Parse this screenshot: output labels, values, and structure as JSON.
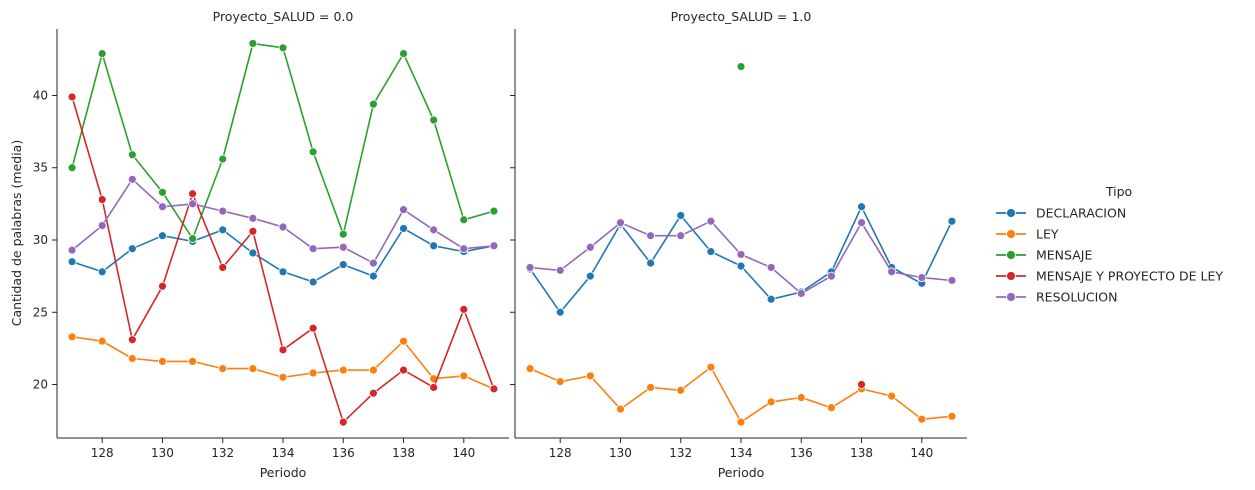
{
  "chart_data": {
    "type": "line",
    "ylabel": "Cantidad de palabras (media)",
    "xlabel": "Periodo",
    "xlim": [
      126.5,
      141.5
    ],
    "ylim": [
      16.3,
      44.6
    ],
    "xticks": [
      128,
      130,
      132,
      134,
      136,
      138,
      140
    ],
    "yticks": [
      20,
      25,
      30,
      35,
      40
    ],
    "legend": {
      "title": "Tipo",
      "placement": "right",
      "entries": [
        "DECLARACION",
        "LEY",
        "MENSAJE",
        "MENSAJE Y PROYECTO DE LEY",
        "RESOLUCION"
      ]
    },
    "colors": {
      "DECLARACION": "#1f77b4",
      "LEY": "#ff7f0e",
      "MENSAJE": "#2ca02c",
      "MENSAJE Y PROYECTO DE LEY": "#d62728",
      "RESOLUCION": "#9467bd"
    },
    "panels": [
      {
        "title": "Proyecto_SALUD = 0.0",
        "series": [
          {
            "name": "DECLARACION",
            "x": [
              127,
              128,
              129,
              130,
              131,
              132,
              133,
              134,
              135,
              136,
              137,
              138,
              139,
              140,
              141
            ],
            "values": [
              28.5,
              27.8,
              29.4,
              30.3,
              29.9,
              30.7,
              29.1,
              27.8,
              27.1,
              28.3,
              27.5,
              30.8,
              29.6,
              29.2,
              29.6
            ]
          },
          {
            "name": "LEY",
            "x": [
              127,
              128,
              129,
              130,
              131,
              132,
              133,
              134,
              135,
              136,
              137,
              138,
              139,
              140,
              141
            ],
            "values": [
              23.3,
              23.0,
              21.8,
              21.6,
              21.6,
              21.1,
              21.1,
              20.5,
              20.8,
              21.0,
              21.0,
              23.0,
              20.4,
              20.6,
              19.7
            ]
          },
          {
            "name": "MENSAJE",
            "x": [
              127,
              128,
              129,
              130,
              131,
              132,
              133,
              134,
              135,
              136,
              137,
              138,
              139,
              140,
              141
            ],
            "values": [
              35.0,
              42.9,
              35.9,
              33.3,
              30.1,
              35.6,
              43.6,
              43.3,
              36.1,
              30.4,
              39.4,
              42.9,
              38.3,
              31.4,
              32.0
            ]
          },
          {
            "name": "MENSAJE Y PROYECTO DE LEY",
            "x": [
              127,
              128,
              129,
              130,
              131,
              132,
              133,
              134,
              135,
              136,
              137,
              138,
              139,
              140,
              141
            ],
            "values": [
              39.9,
              32.8,
              23.1,
              26.8,
              33.2,
              28.1,
              30.6,
              22.4,
              23.9,
              17.4,
              19.4,
              21.0,
              19.8,
              25.2,
              19.7
            ]
          },
          {
            "name": "RESOLUCION",
            "x": [
              127,
              128,
              129,
              130,
              131,
              132,
              133,
              134,
              135,
              136,
              137,
              138,
              139,
              140,
              141
            ],
            "values": [
              29.3,
              31.0,
              34.2,
              32.3,
              32.5,
              32.0,
              31.5,
              30.9,
              29.4,
              29.5,
              28.4,
              32.1,
              30.7,
              29.4,
              29.6
            ]
          }
        ]
      },
      {
        "title": "Proyecto_SALUD = 1.0",
        "series": [
          {
            "name": "DECLARACION",
            "x": [
              127,
              128,
              129,
              130,
              131,
              132,
              133,
              134,
              135,
              136,
              137,
              138,
              139,
              140,
              141
            ],
            "values": [
              28.0,
              25.0,
              27.5,
              31.1,
              28.4,
              31.7,
              29.2,
              28.2,
              25.9,
              26.4,
              27.8,
              32.3,
              28.1,
              27.0,
              31.3
            ]
          },
          {
            "name": "LEY",
            "x": [
              127,
              128,
              129,
              130,
              131,
              132,
              133,
              134,
              135,
              136,
              137,
              138,
              139,
              140,
              141
            ],
            "values": [
              21.1,
              20.2,
              20.6,
              18.3,
              19.8,
              19.6,
              21.2,
              17.4,
              18.8,
              19.1,
              18.4,
              19.7,
              19.2,
              17.6,
              17.8
            ]
          },
          {
            "name": "MENSAJE",
            "x": [
              134
            ],
            "values": [
              42.0
            ]
          },
          {
            "name": "MENSAJE Y PROYECTO DE LEY",
            "x": [
              138
            ],
            "values": [
              20.0
            ]
          },
          {
            "name": "RESOLUCION",
            "x": [
              127,
              128,
              129,
              130,
              131,
              132,
              133,
              134,
              135,
              136,
              137,
              138,
              139,
              140,
              141
            ],
            "values": [
              28.1,
              27.9,
              29.5,
              31.2,
              30.3,
              30.3,
              31.3,
              29.0,
              28.1,
              26.3,
              27.5,
              31.2,
              27.8,
              27.4,
              27.2
            ]
          }
        ]
      }
    ]
  }
}
